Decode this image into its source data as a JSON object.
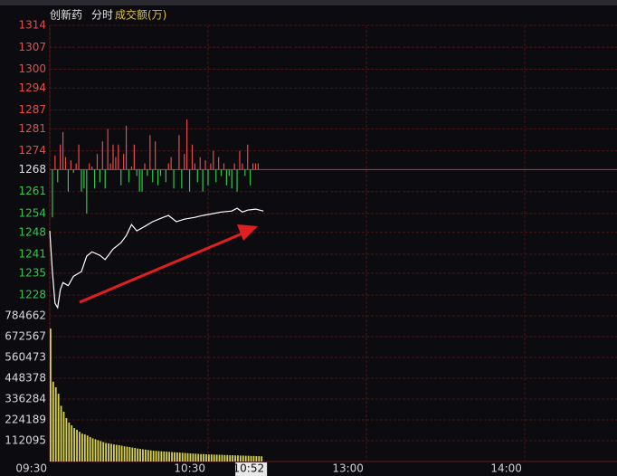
{
  "header": {
    "name": "创新药",
    "mode": "分时",
    "indicator": "成交额(万)"
  },
  "chart_data": [
    {
      "type": "line",
      "color": "#ffffff",
      "x": [
        0,
        1,
        2,
        3,
        4,
        5,
        7,
        9,
        12,
        14,
        16,
        19,
        21,
        24,
        27,
        29,
        31,
        33,
        36,
        39,
        43,
        45,
        48,
        51,
        55,
        58,
        62,
        65,
        69,
        71,
        73,
        75,
        78,
        81
      ],
      "values": [
        1248.5,
        1235.5,
        1225.4,
        1224,
        1229.7,
        1232,
        1231,
        1234,
        1235.5,
        1240.4,
        1241.8,
        1240.7,
        1239.3,
        1242.7,
        1244.7,
        1247,
        1250.5,
        1248.5,
        1249.9,
        1251.4,
        1252.8,
        1253.4,
        1251.4,
        1252.2,
        1252.8,
        1253.4,
        1254,
        1254.5,
        1254.8,
        1255.7,
        1254.5,
        1255.1,
        1255.4,
        1254.8
      ],
      "prev_close": 1268,
      "prev_close_color": "#c0282a",
      "up_color": "#e84a4a",
      "down_color": "#2fc84a",
      "bar_x": [
        1,
        2,
        3,
        4,
        5,
        6,
        7,
        8,
        9,
        10,
        11,
        12,
        13,
        14,
        15,
        16,
        17,
        18,
        19,
        20,
        21,
        22,
        23,
        24,
        25,
        26,
        27,
        28,
        29,
        30,
        31,
        32,
        33,
        34,
        35,
        36,
        37,
        38,
        39,
        40,
        41,
        42,
        44,
        45,
        46,
        47,
        49,
        50,
        51,
        52,
        53,
        54,
        55,
        56,
        57,
        58,
        59,
        60,
        61,
        62,
        63,
        64,
        65,
        66,
        67,
        68,
        69,
        70,
        71,
        72,
        73,
        74,
        75,
        76,
        77,
        78,
        79
      ],
      "bar_values": [
        1252.8,
        1272.5,
        1264,
        1276,
        1280,
        1272,
        1261,
        1271,
        1267,
        1270,
        1276,
        1261,
        1262,
        1254,
        1270,
        1269,
        1262,
        1273,
        1264,
        1277,
        1262,
        1281,
        1270,
        1276,
        1272,
        1276,
        1263,
        1273,
        1282,
        1264,
        1269,
        1276,
        1266,
        1261,
        1261,
        1270,
        1266,
        1279,
        1264,
        1277,
        1263,
        1266,
        1264,
        1270,
        1272,
        1262,
        1279,
        1262,
        1273,
        1284,
        1261,
        1276,
        1270,
        1264,
        1272,
        1261,
        1271,
        1263,
        1270,
        1274,
        1264,
        1272,
        1266,
        1270,
        1263,
        1266,
        1262,
        1270,
        1261,
        1274,
        1270,
        1266,
        1276,
        1263,
        1270,
        1270,
        1270
      ],
      "xlim": [
        0,
        215
      ],
      "xticks": [
        {
          "value": 0,
          "label": "09:30"
        },
        {
          "value": 60,
          "label": "10:30"
        },
        {
          "value": 120,
          "label": "13:00"
        },
        {
          "value": 180,
          "label": "14:00"
        }
      ],
      "cursor": {
        "value": 82,
        "label": "10:52"
      },
      "ylim": [
        1221.4,
        1314
      ],
      "yticks": [
        1314,
        1307,
        1300,
        1294,
        1287,
        1281,
        1274,
        1268,
        1261,
        1254,
        1248,
        1241,
        1235,
        1228
      ],
      "grid": true
    },
    {
      "type": "bar",
      "color": "#d8d24a",
      "x": [
        0,
        1,
        2,
        3,
        4,
        5,
        6,
        7,
        8,
        9,
        10,
        11,
        12,
        13,
        14,
        15,
        16,
        17,
        18,
        19,
        20,
        21,
        22,
        23,
        24,
        25,
        26,
        27,
        28,
        29,
        30,
        31,
        32,
        33,
        34,
        35,
        36,
        37,
        38,
        39,
        40,
        41,
        42,
        43,
        44,
        45,
        46,
        47,
        48,
        49,
        50,
        51,
        52,
        53,
        54,
        55,
        56,
        57,
        58,
        59,
        60,
        61,
        62,
        63,
        64,
        65,
        66,
        67,
        68,
        69,
        70,
        71,
        72,
        73,
        74,
        75,
        76,
        77,
        78,
        79,
        80
      ],
      "values": [
        716000,
        430000,
        400000,
        365000,
        300000,
        268000,
        234000,
        210000,
        195000,
        180000,
        171000,
        160000,
        150000,
        146000,
        140000,
        132000,
        125000,
        120000,
        115000,
        110000,
        105000,
        100000,
        98000,
        95000,
        92000,
        90000,
        88000,
        85000,
        82000,
        80000,
        78000,
        75000,
        73000,
        70000,
        68000,
        66000,
        64000,
        62000,
        60000,
        58000,
        57000,
        56000,
        55000,
        54000,
        53000,
        52000,
        51000,
        50000,
        49000,
        48000,
        47000,
        46000,
        45000,
        44000,
        43000,
        42000,
        41000,
        40000,
        40000,
        39000,
        38000,
        38000,
        37000,
        37000,
        36000,
        36000,
        35000,
        35000,
        34000,
        34000,
        33000,
        33000,
        32000,
        32000,
        31000,
        31000,
        30000,
        30000,
        29000,
        29000,
        28000
      ],
      "ylim": [
        0,
        784662
      ],
      "yticks": [
        784662,
        672567,
        560473,
        448378,
        336284,
        224189,
        112095
      ],
      "grid": true
    }
  ]
}
